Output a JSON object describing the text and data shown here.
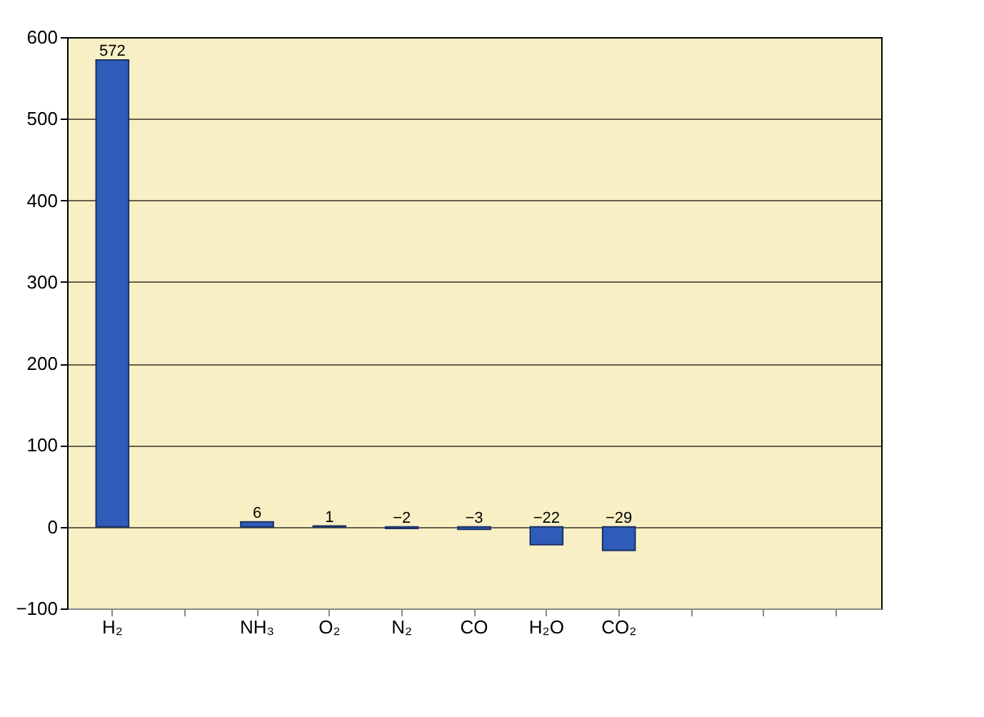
{
  "chart_data": {
    "type": "bar",
    "categories": [
      "H₂",
      null,
      "NH₃",
      "O₂",
      "N₂",
      "CO",
      "H₂O",
      "CO₂",
      null,
      null,
      null
    ],
    "values": [
      572,
      null,
      6,
      1,
      -2,
      -3,
      -22,
      -29,
      null,
      null,
      null
    ],
    "color": "#2e5cb8",
    "ylim": [
      -100,
      600
    ],
    "yticks": [
      -100,
      0,
      100,
      200,
      300,
      400,
      500,
      600
    ],
    "grid": "y",
    "data_labels": true
  }
}
